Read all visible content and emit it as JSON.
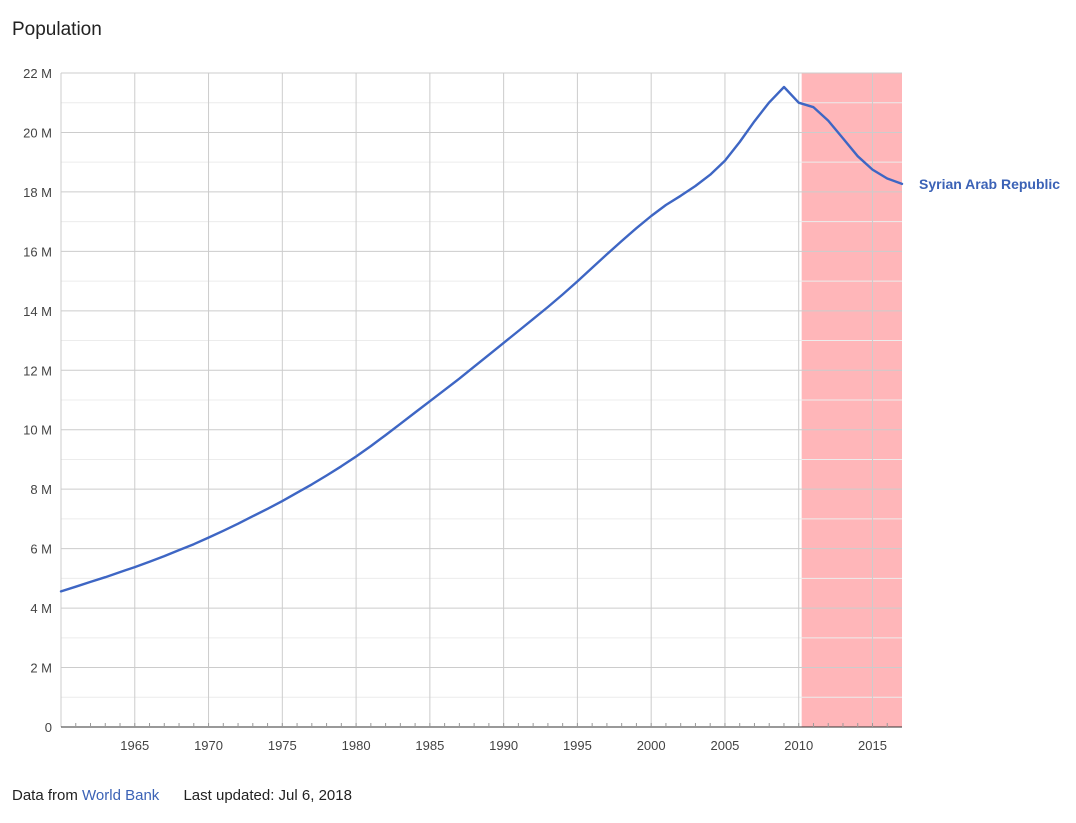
{
  "title": "Population",
  "footer": {
    "prefix": "Data from",
    "source_link": "World Bank",
    "updated": "Last updated: Jul 6, 2018"
  },
  "colors": {
    "line": "#3e66c4",
    "highlight": "#ffb6b9",
    "label": "#3b62b6"
  },
  "chart_data": {
    "type": "line",
    "title": "Population",
    "xlabel": "",
    "ylabel": "",
    "xlim": [
      1960,
      2017
    ],
    "ylim": [
      0,
      22000000
    ],
    "x_ticks": [
      1965,
      1970,
      1975,
      1980,
      1985,
      1990,
      1995,
      2000,
      2005,
      2010,
      2015
    ],
    "y_ticks": [
      0,
      2000000,
      4000000,
      6000000,
      8000000,
      10000000,
      12000000,
      14000000,
      16000000,
      18000000,
      20000000,
      22000000
    ],
    "y_tick_labels": [
      "0",
      "2 M",
      "4 M",
      "6 M",
      "8 M",
      "10 M",
      "12 M",
      "14 M",
      "16 M",
      "18 M",
      "20 M",
      "22 M"
    ],
    "x_tick_labels": [
      "1965",
      "1970",
      "1975",
      "1980",
      "1985",
      "1990",
      "1995",
      "2000",
      "2005",
      "2010",
      "2015"
    ],
    "grid": true,
    "highlight_range": [
      2010.2,
      2017
    ],
    "series": [
      {
        "name": "Syrian Arab Republic",
        "x": [
          1960,
          1961,
          1962,
          1963,
          1964,
          1965,
          1966,
          1967,
          1968,
          1969,
          1970,
          1971,
          1972,
          1973,
          1974,
          1975,
          1976,
          1977,
          1978,
          1979,
          1980,
          1981,
          1982,
          1983,
          1984,
          1985,
          1986,
          1987,
          1988,
          1989,
          1990,
          1991,
          1992,
          1993,
          1994,
          1995,
          1996,
          1997,
          1998,
          1999,
          2000,
          2001,
          2002,
          2003,
          2004,
          2005,
          2006,
          2007,
          2008,
          2009,
          2010,
          2011,
          2012,
          2013,
          2014,
          2015,
          2016,
          2017
        ],
        "values": [
          4560000,
          4720000,
          4880000,
          5040000,
          5210000,
          5380000,
          5560000,
          5750000,
          5950000,
          6150000,
          6370000,
          6600000,
          6840000,
          7090000,
          7340000,
          7600000,
          7880000,
          8160000,
          8460000,
          8770000,
          9100000,
          9450000,
          9820000,
          10200000,
          10580000,
          10960000,
          11340000,
          11720000,
          12120000,
          12520000,
          12920000,
          13320000,
          13720000,
          14130000,
          14550000,
          14990000,
          15450000,
          15900000,
          16350000,
          16780000,
          17190000,
          17560000,
          17870000,
          18200000,
          18580000,
          19050000,
          19680000,
          20380000,
          21010000,
          21530000,
          21000000,
          20850000,
          20400000,
          19800000,
          19200000,
          18750000,
          18450000,
          18270000
        ]
      }
    ]
  }
}
